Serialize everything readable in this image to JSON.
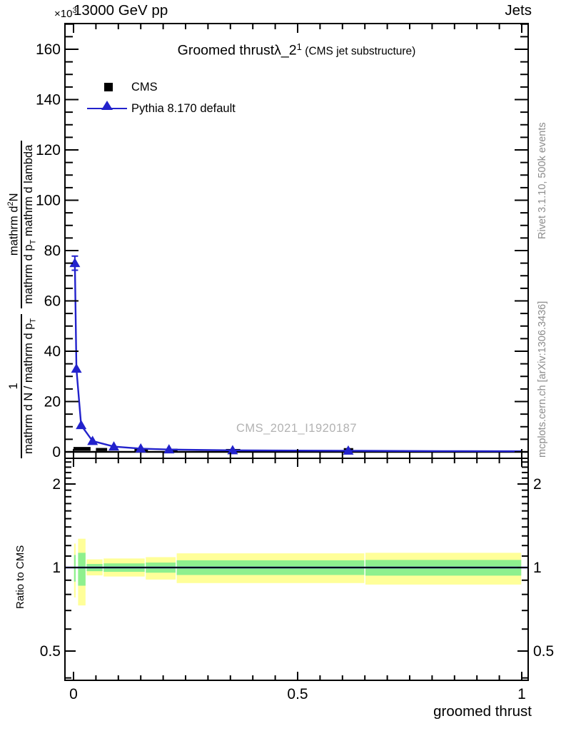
{
  "header": {
    "multiplier": "×10",
    "multiplier_exp": "3",
    "beam": "13000 GeV pp",
    "topright": "Jets"
  },
  "plot_title": {
    "main": "Groomed thrust",
    "lambda": "λ_2",
    "sup": "1",
    "note": "(CMS jet substructure)"
  },
  "legend": {
    "items": [
      {
        "label": "CMS",
        "marker": "black-square"
      },
      {
        "label": "Pythia 8.170 default",
        "marker": "blue-line-triangle"
      }
    ]
  },
  "watermark": "CMS_2021_I1920187",
  "side_text_top": "Rivet 3.1.10,  500k events",
  "side_text_bottom": "mcplots.cern.ch [arXiv:1306.3436]",
  "y_axis_label": {
    "frac1_num": "1",
    "frac1_den_main": "mathrm d N / mathrm d p",
    "frac1_den_sub": "T",
    "frac2_num_pre": "mathrm d",
    "frac2_num_sup": "2",
    "frac2_num_post": "N",
    "frac2_den_pre": "mathrm d p",
    "frac2_den_sub": "T",
    "frac2_den_post": " mathrm d lambda"
  },
  "ratio_axis_label": "Ratio to CMS",
  "x_axis_label": "groomed thrust",
  "colors": {
    "model_blue": "#2222cc",
    "band_yellow": "#ffff99",
    "band_green": "#8ef08e",
    "gray_text": "#8c8c8c",
    "watermark_gray": "#b2b2b2",
    "frame_black": "#000000"
  },
  "chart_data": {
    "type": "line",
    "title": "Groomed thrust lambda_2^1 (CMS jet substructure)",
    "xlabel": "groomed thrust",
    "ylabel": "1/(dN/dp_T) d2N/(dp_T dlambda)",
    "y_multiplier": "×10^3",
    "x_ticks": {
      "values": [
        0,
        0.5,
        1
      ],
      "labels": [
        "0",
        "0.5",
        "1"
      ],
      "minor_step": 0.05
    },
    "main_panel": {
      "x_range": [
        -0.019,
        1.014
      ],
      "y_range_e3": [
        -2.6,
        170.5
      ],
      "y_ticks": {
        "values": [
          0,
          20,
          40,
          60,
          80,
          100,
          120,
          140,
          160
        ],
        "labels": [
          "0",
          "20",
          "40",
          "60",
          "80",
          "100",
          "120",
          "140",
          "160"
        ],
        "minor_step": 5
      },
      "cms_boxes": [
        {
          "x0": 0.0,
          "x1": 0.038,
          "y": 1.2,
          "half_err": 0.75
        },
        {
          "x0": 0.05,
          "x1": 0.075,
          "y": 0.95,
          "half_err": 0.6
        },
        {
          "x0": 0.136,
          "x1": 0.166,
          "y": 0.8,
          "half_err": 0.55
        },
        {
          "x0": 0.208,
          "x1": 0.232,
          "y": 0.75,
          "half_err": 0.5
        },
        {
          "x0": 0.34,
          "x1": 0.372,
          "y": 0.65,
          "half_err": 0.5
        },
        {
          "x0": 0.603,
          "x1": 0.624,
          "y": 0.8,
          "half_err": 0.7
        }
      ],
      "pythia_points": [
        [
          0.003,
          75
        ],
        [
          0.0065,
          33
        ],
        [
          0.017,
          10.6
        ],
        [
          0.0425,
          4.3
        ],
        [
          0.09,
          2.1
        ],
        [
          0.15,
          1.3
        ],
        [
          0.213,
          0.95
        ],
        [
          0.355,
          0.6
        ],
        [
          0.613,
          0.45
        ],
        [
          0.82,
          0.3
        ],
        [
          1.0,
          0.25
        ]
      ],
      "pythia_marker_count": 9,
      "first_point_err": 2.8
    },
    "ratio_panel": {
      "scale": "log",
      "y_range": [
        0.39,
        2.46
      ],
      "y_ticks": {
        "values": [
          0.5,
          1,
          2
        ],
        "labels": [
          "0.5",
          "1",
          "2"
        ]
      },
      "reference_line": 1,
      "model_ratio": 1,
      "bands": [
        {
          "x0": 0.0,
          "x1": 0.006,
          "outer_lo": 0.78,
          "outer_hi": 1.22,
          "inner_lo": 0.89,
          "inner_hi": 1.11
        },
        {
          "x0": 0.009,
          "x1": 0.028,
          "outer_lo": 0.73,
          "outer_hi": 1.27,
          "inner_lo": 0.86,
          "inner_hi": 1.13
        },
        {
          "x0": 0.028,
          "x1": 0.066,
          "outer_lo": 0.937,
          "outer_hi": 1.07,
          "inner_lo": 0.97,
          "inner_hi": 1.03
        },
        {
          "x0": 0.066,
          "x1": 0.16,
          "outer_lo": 0.928,
          "outer_hi": 1.078,
          "inner_lo": 0.965,
          "inner_hi": 1.035
        },
        {
          "x0": 0.16,
          "x1": 0.229,
          "outer_lo": 0.905,
          "outer_hi": 1.09,
          "inner_lo": 0.958,
          "inner_hi": 1.042
        },
        {
          "x0": 0.229,
          "x1": 0.65,
          "outer_lo": 0.879,
          "outer_hi": 1.125,
          "inner_lo": 0.94,
          "inner_hi": 1.062
        },
        {
          "x0": 0.65,
          "x1": 1.0,
          "outer_lo": 0.868,
          "outer_hi": 1.13,
          "inner_lo": 0.935,
          "inner_hi": 1.065
        }
      ]
    }
  }
}
